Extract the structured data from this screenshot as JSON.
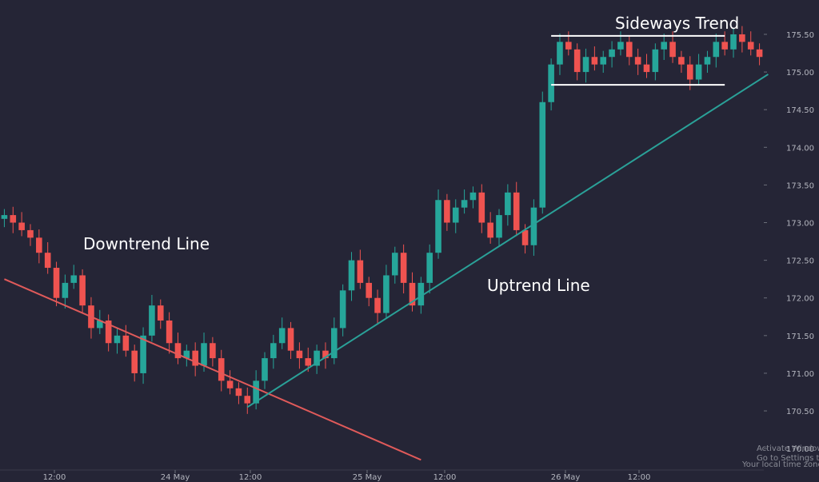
{
  "chart_data": {
    "type": "candlestick",
    "colors": {
      "background": "#252536",
      "up": "#26a69a",
      "down": "#ef5350",
      "downtrend_line": "#e05a5a",
      "uptrend_line": "#2aa198",
      "channel_lines": "#ffffff",
      "axis_text": "#b3b5be"
    },
    "y_axis": {
      "ticks": [
        "175.50",
        "175.00",
        "174.50",
        "174.00",
        "173.50",
        "173.00",
        "172.50",
        "172.00",
        "171.50",
        "171.00",
        "170.50",
        "170.00"
      ],
      "ylim": [
        169.8,
        175.85
      ]
    },
    "x_axis": {
      "ticks": [
        "12:00",
        "24 May",
        "12:00",
        "25 May",
        "12:00",
        "26 May",
        "12:00"
      ]
    },
    "annotations": {
      "downtrend": "Downtrend Line",
      "uptrend": "Uptrend Line",
      "sideways": "Sideways Trend"
    },
    "lines": {
      "downtrend": {
        "start": [
          0,
          172.25
        ],
        "end": [
          48,
          169.85
        ]
      },
      "uptrend": {
        "start": [
          28,
          170.55
        ],
        "end": [
          88,
          174.97
        ]
      },
      "sideways_top": {
        "start": [
          63,
          175.48
        ],
        "end": [
          83,
          175.48
        ]
      },
      "sideways_bottom": {
        "start": [
          63,
          174.83
        ],
        "end": [
          83,
          174.83
        ]
      }
    },
    "series": [
      {
        "name": "price",
        "close": [
          173.1,
          173.0,
          172.9,
          172.8,
          172.6,
          172.4,
          172.0,
          172.2,
          172.3,
          171.9,
          171.6,
          171.7,
          171.4,
          171.5,
          171.3,
          171.0,
          171.5,
          171.9,
          171.7,
          171.4,
          171.2,
          171.3,
          171.1,
          171.4,
          171.2,
          170.9,
          170.8,
          170.7,
          170.6,
          170.9,
          171.2,
          171.4,
          171.6,
          171.3,
          171.2,
          171.1,
          171.3,
          171.2,
          171.6,
          172.1,
          172.5,
          172.2,
          172.0,
          171.8,
          172.3,
          172.6,
          172.2,
          171.9,
          172.2,
          172.6,
          173.3,
          173.0,
          173.2,
          173.3,
          173.4,
          173.0,
          172.8,
          173.1,
          173.4,
          172.9,
          172.7,
          173.2,
          174.6,
          175.1,
          175.4,
          175.3,
          175.0,
          175.2,
          175.1,
          175.2,
          175.3,
          175.4,
          175.2,
          175.1,
          175.0,
          175.3,
          175.4,
          175.2,
          175.1,
          174.9,
          175.1,
          175.2,
          175.4,
          175.3,
          175.5,
          175.4,
          175.3,
          175.2
        ]
      }
    ]
  },
  "watermark": {
    "line1": "Activate Windows",
    "line2": "Go to Settings to activate Windows.",
    "timezone": "Your local time zone"
  }
}
